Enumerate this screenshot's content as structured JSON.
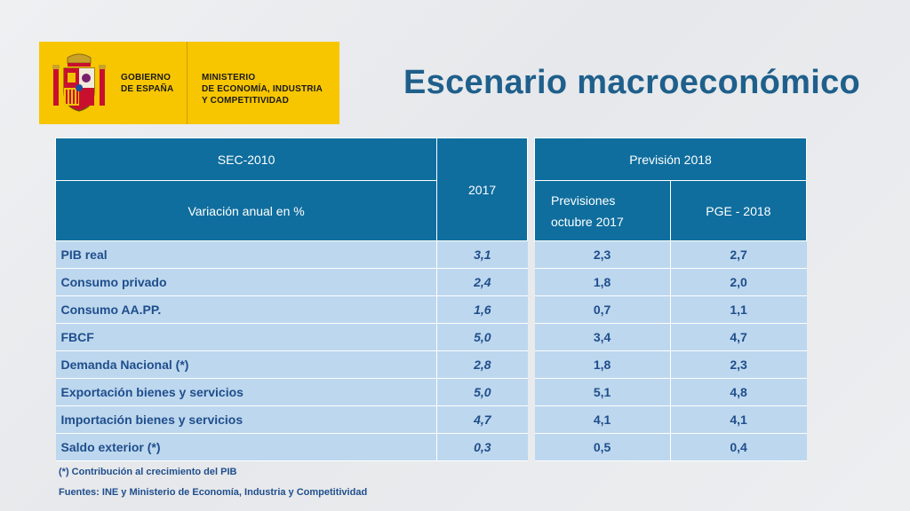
{
  "logo": {
    "gov_line1": "GOBIERNO",
    "gov_line2": "DE ESPAÑA",
    "min_line1": "MINISTERIO",
    "min_line2": "DE ECONOMÍA, INDUSTRIA",
    "min_line3": "Y COMPETITIVIDAD",
    "color": "#f7c600"
  },
  "title": "Escenario macroeconómico",
  "table": {
    "header_sec": "SEC-2010",
    "header_var": "Variación anual en %",
    "header_2017": "2017",
    "header_prevision": "Previsión 2018",
    "header_previsiones": "Previsiones octubre 2017",
    "header_pge": "PGE - 2018",
    "rows": [
      {
        "label": "PIB real",
        "v2017": "3,1",
        "prev": "2,3",
        "pge": "2,7"
      },
      {
        "label": "Consumo privado",
        "v2017": "2,4",
        "prev": "1,8",
        "pge": "2,0"
      },
      {
        "label": "Consumo  AA.PP.",
        "v2017": "1,6",
        "prev": "0,7",
        "pge": "1,1"
      },
      {
        "label": "FBCF",
        "v2017": "5,0",
        "prev": "3,4",
        "pge": "4,7"
      },
      {
        "label": "Demanda Nacional (*)",
        "v2017": "2,8",
        "prev": "1,8",
        "pge": "2,3"
      },
      {
        "label": "Exportación bienes y servicios",
        "v2017": "5,0",
        "prev": "5,1",
        "pge": "4,8"
      },
      {
        "label": "Importación bienes y servicios",
        "v2017": "4,7",
        "prev": "4,1",
        "pge": "4,1"
      },
      {
        "label": "Saldo exterior (*)",
        "v2017": "0,3",
        "prev": "0,5",
        "pge": "0,4"
      }
    ]
  },
  "footnote": "(*) Contribución al crecimiento del PIB",
  "sources": "Fuentes: INE y Ministerio de Economía, Industria y Competitividad",
  "colors": {
    "header": "#0f6e9e",
    "row": "#bdd7ee",
    "title": "#1f5f8b",
    "text": "#1f4e8c"
  }
}
